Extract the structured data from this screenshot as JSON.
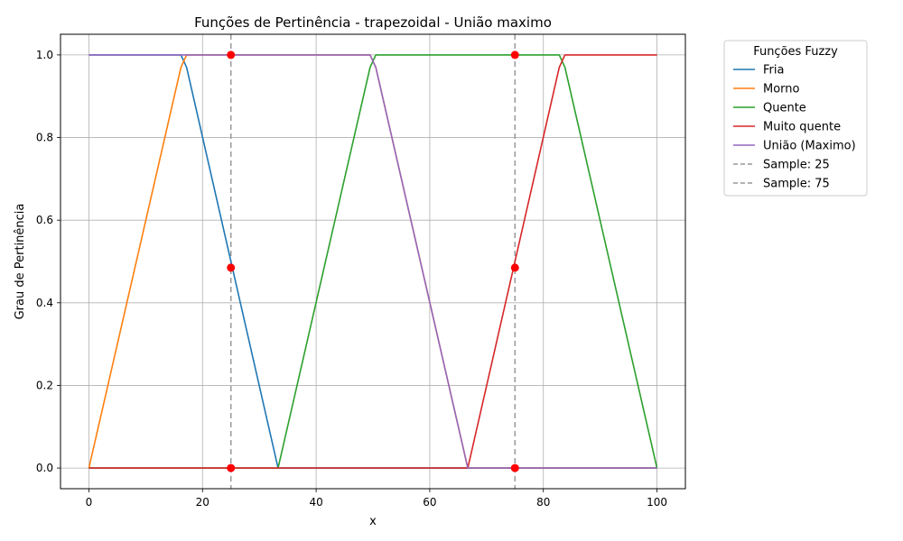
{
  "chart_data": {
    "type": "line",
    "title": "Funções de Pertinência - trapezoidal - União maximo",
    "xlabel": "x",
    "ylabel": "Grau de Pertinência",
    "xlim": [
      -5,
      105
    ],
    "ylim": [
      -0.05,
      1.05
    ],
    "xticks": [
      0,
      20,
      40,
      60,
      80,
      100
    ],
    "xtick_labels": [
      "0",
      "20",
      "40",
      "60",
      "80",
      "100"
    ],
    "yticks": [
      0.0,
      0.2,
      0.4,
      0.6,
      0.8,
      1.0
    ],
    "ytick_labels": [
      "0.0",
      "0.2",
      "0.4",
      "0.6",
      "0.8",
      "1.0"
    ],
    "grid": true,
    "legend_title": "Funções Fuzzy",
    "legend_position": "outside-right-top",
    "series": [
      {
        "name": "Fria",
        "color": "#1f77b4",
        "style": "solid",
        "points": [
          [
            0,
            1.0
          ],
          [
            16.2,
            1.0
          ],
          [
            17.2,
            0.97
          ],
          [
            33.3,
            0.0
          ],
          [
            100,
            0.0
          ]
        ]
      },
      {
        "name": "Morno",
        "color": "#ff7f0e",
        "style": "solid",
        "points": [
          [
            0,
            0.0
          ],
          [
            16.2,
            0.97
          ],
          [
            17.2,
            1.0
          ],
          [
            49.5,
            1.0
          ],
          [
            50.5,
            0.97
          ],
          [
            66.7,
            0.0
          ],
          [
            100,
            0.0
          ]
        ]
      },
      {
        "name": "Quente",
        "color": "#2ca02c",
        "style": "solid",
        "points": [
          [
            0,
            0.0
          ],
          [
            33.3,
            0.0
          ],
          [
            49.5,
            0.97
          ],
          [
            50.5,
            1.0
          ],
          [
            82.8,
            1.0
          ],
          [
            83.8,
            0.97
          ],
          [
            100,
            0.0
          ]
        ]
      },
      {
        "name": "Muito quente",
        "color": "#d62728",
        "style": "solid",
        "points": [
          [
            0,
            0.0
          ],
          [
            66.7,
            0.0
          ],
          [
            82.8,
            0.97
          ],
          [
            83.8,
            1.0
          ],
          [
            100,
            1.0
          ]
        ]
      },
      {
        "name": "União (Maximo)",
        "color": "#9467bd",
        "style": "solid",
        "points": [
          [
            0,
            1.0
          ],
          [
            49.5,
            1.0
          ],
          [
            50.5,
            0.97
          ],
          [
            66.7,
            0.0
          ],
          [
            100,
            0.0
          ]
        ]
      }
    ],
    "vlines": [
      {
        "name": "Sample: 25",
        "x": 25,
        "color": "#999999",
        "style": "dashed"
      },
      {
        "name": "Sample: 75",
        "x": 75,
        "color": "#999999",
        "style": "dashed"
      }
    ],
    "markers": [
      {
        "x": 25,
        "y": 1.0
      },
      {
        "x": 25,
        "y": 0.485
      },
      {
        "x": 25,
        "y": 0.0
      },
      {
        "x": 75,
        "y": 1.0
      },
      {
        "x": 75,
        "y": 0.485
      },
      {
        "x": 75,
        "y": 0.0
      }
    ],
    "marker_color": "#ff0000"
  }
}
